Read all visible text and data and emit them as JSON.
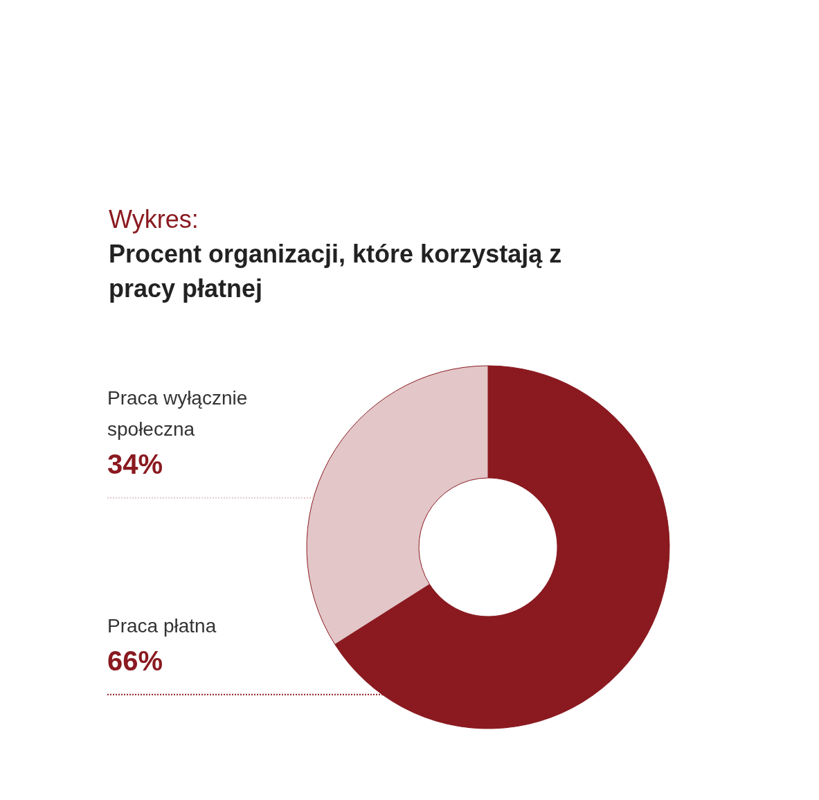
{
  "chart_data": {
    "type": "donut",
    "title": "Procent organizacji, które korzystają z pracy płatnej",
    "annotations": [
      "Wykres:"
    ],
    "categories": [
      "Praca płatna",
      "Praca wyłącznie społeczna"
    ],
    "values": [
      66,
      34
    ],
    "value_labels": [
      "66%",
      "34%"
    ],
    "colors": [
      "#8a1a20",
      "#e2c6c8"
    ]
  }
}
